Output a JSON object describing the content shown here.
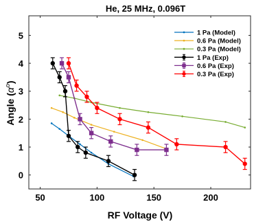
{
  "chart_data": {
    "type": "line",
    "title": "He, 25 MHz, 0.096T",
    "xlabel": "RF Voltage (V)",
    "ylabel_prefix": "Angle (",
    "ylabel_symbol": "α",
    "ylabel_sup": "o",
    "ylabel_suffix": ")",
    "xlim": [
      40,
      235
    ],
    "ylim": [
      -0.5,
      5.7
    ],
    "xticks": [
      50,
      100,
      150,
      200
    ],
    "yticks": [
      0,
      1,
      2,
      3,
      4,
      5
    ],
    "grid": false,
    "legend_position": "top-right",
    "series": [
      {
        "name": "1 Pa (Model)",
        "kind": "model",
        "color": "#0072BD",
        "x": [
          60,
          67,
          75,
          85,
          95,
          110,
          132
        ],
        "y": [
          1.85,
          1.65,
          1.4,
          1.1,
          0.8,
          0.4,
          -0.05
        ]
      },
      {
        "name": "0.6 Pa (Model)",
        "kind": "model",
        "color": "#EDB120",
        "x": [
          60,
          70,
          80,
          95,
          115,
          140,
          160
        ],
        "y": [
          2.4,
          2.25,
          2.05,
          1.8,
          1.55,
          1.25,
          0.95
        ]
      },
      {
        "name": "0.3 Pa (Model)",
        "kind": "model",
        "color": "#77AC30",
        "x": [
          67,
          80,
          95,
          120,
          145,
          175,
          213,
          230
        ],
        "y": [
          2.85,
          2.75,
          2.6,
          2.4,
          2.25,
          2.1,
          1.9,
          1.7
        ]
      },
      {
        "name": "1 Pa (Exp)",
        "kind": "exp",
        "color": "#000000",
        "marker": "circle",
        "x": [
          61,
          67,
          72,
          75,
          83,
          90,
          110,
          133
        ],
        "y": [
          4.0,
          3.5,
          3.0,
          1.4,
          1.0,
          0.8,
          0.5,
          0.0
        ],
        "err": [
          0.2,
          0.2,
          0.2,
          0.2,
          0.2,
          0.2,
          0.2,
          0.2
        ]
      },
      {
        "name": "0.6 Pa (Exp)",
        "kind": "exp",
        "color": "#7E2F8E",
        "marker": "square",
        "x": [
          69,
          75,
          85,
          95,
          112,
          135,
          161
        ],
        "y": [
          4.0,
          3.5,
          2.0,
          1.5,
          1.2,
          0.9,
          0.9
        ],
        "err": [
          0.2,
          0.2,
          0.2,
          0.2,
          0.2,
          0.2,
          0.2
        ]
      },
      {
        "name": "0.3 Pa (Exp)",
        "kind": "exp",
        "color": "#FF0000",
        "marker": "circle",
        "x": [
          75,
          82,
          91,
          100,
          120,
          145,
          170,
          213,
          230
        ],
        "y": [
          4.0,
          3.2,
          2.8,
          2.4,
          2.0,
          1.7,
          1.1,
          1.0,
          0.4
        ],
        "err": [
          0.2,
          0.2,
          0.2,
          0.2,
          0.2,
          0.2,
          0.2,
          0.2,
          0.2
        ]
      }
    ]
  }
}
